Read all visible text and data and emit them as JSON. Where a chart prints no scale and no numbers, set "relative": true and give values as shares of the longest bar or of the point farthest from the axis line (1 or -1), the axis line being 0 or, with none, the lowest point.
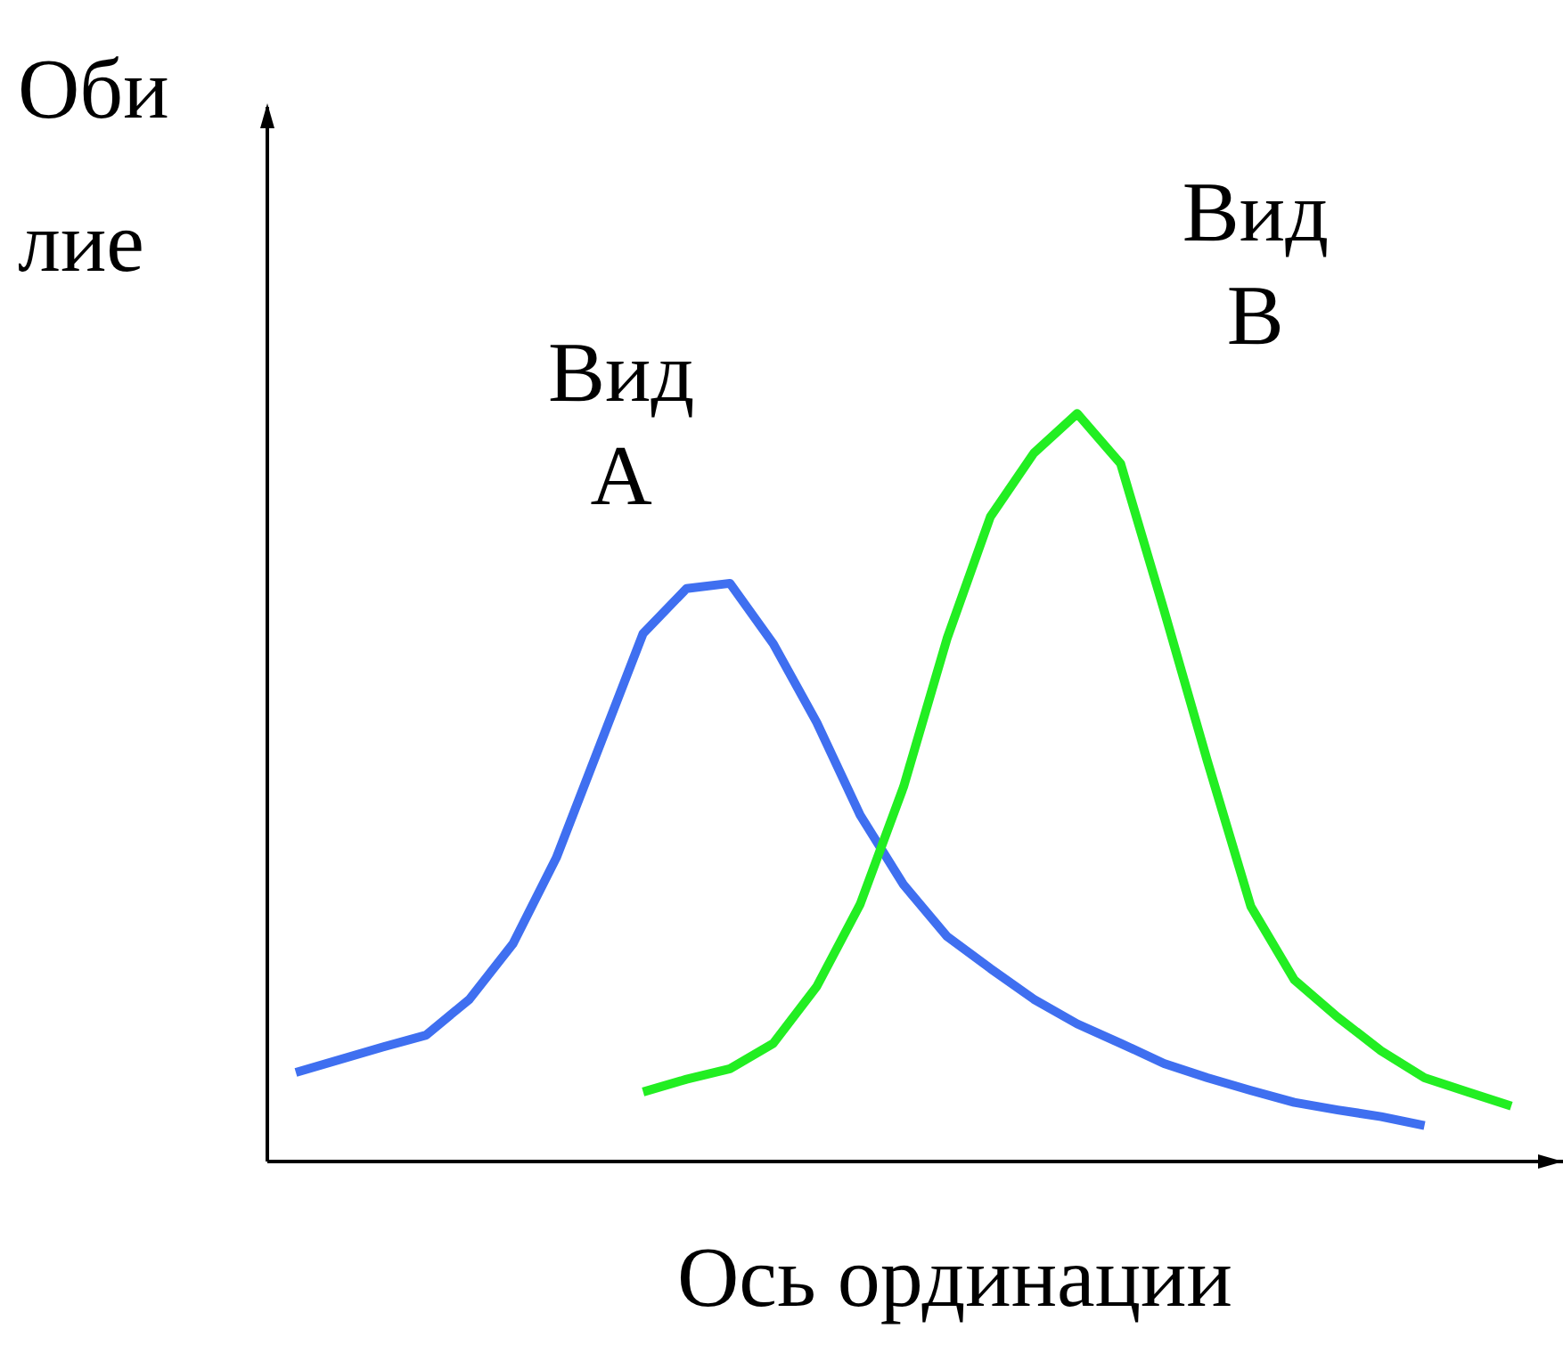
{
  "chart_data": {
    "type": "line",
    "relative": true,
    "xlabel": "Ось ординации",
    "ylabel": "Обилие",
    "line_style": "solid",
    "categories": [
      null,
      null,
      null,
      null,
      null,
      null,
      null,
      null,
      null,
      null,
      null,
      null,
      null,
      null,
      null,
      null,
      null,
      null,
      null,
      null,
      null,
      null,
      null,
      null,
      null,
      null,
      null,
      null,
      null
    ],
    "series": [
      {
        "name": "Вид A",
        "color": "#3f6ff0",
        "values": [
          0.119,
          0.136,
          0.153,
          0.169,
          0.217,
          0.291,
          0.406,
          0.556,
          0.706,
          0.766,
          0.773,
          0.692,
          0.587,
          0.463,
          0.37,
          0.301,
          0.258,
          0.217,
          0.184,
          0.158,
          0.131,
          0.112,
          0.095,
          0.079,
          0.069,
          0.06,
          0.048,
          null,
          null
        ]
      },
      {
        "name": "Вид B",
        "color": "#22ee22",
        "values": [
          null,
          null,
          null,
          null,
          null,
          null,
          null,
          null,
          0.093,
          0.11,
          0.124,
          0.158,
          0.234,
          0.344,
          0.501,
          0.699,
          0.862,
          0.947,
          1,
          0.933,
          0.737,
          0.535,
          0.341,
          0.243,
          0.193,
          0.148,
          0.112,
          0.093,
          0.074
        ]
      }
    ]
  }
}
